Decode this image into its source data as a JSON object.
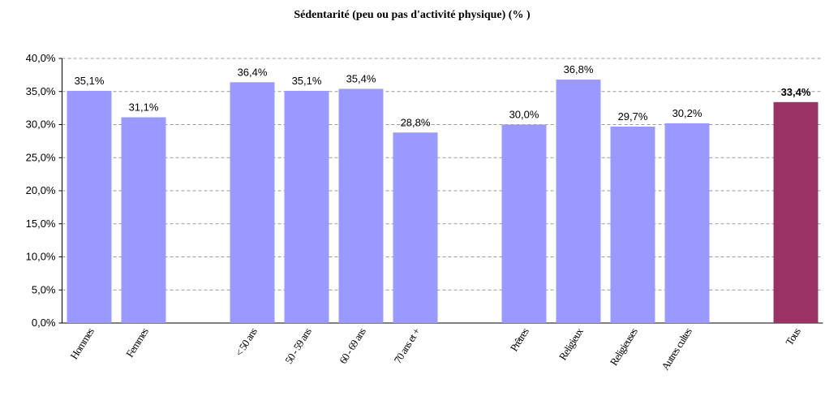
{
  "chart_data": {
    "type": "bar",
    "title": "Sédentarité (peu ou pas d'activité physique) (% )",
    "categories": [
      "Hommes",
      "Femmes",
      null,
      "< 50 ans",
      "50 - 59 ans",
      "60 - 69 ans",
      "70 ans et +",
      null,
      "Prêtres",
      "Religieux",
      "Religieuses",
      "Autres cultes",
      null,
      "Tous"
    ],
    "values": [
      35.1,
      31.1,
      null,
      36.4,
      35.1,
      35.4,
      28.8,
      null,
      30.0,
      36.8,
      29.7,
      30.2,
      null,
      33.4
    ],
    "value_labels": [
      "35,1%",
      "31,1%",
      null,
      "36,4%",
      "35,1%",
      "35,4%",
      "28,8%",
      null,
      "30,0%",
      "36,8%",
      "29,7%",
      "30,2%",
      null,
      "33,4%"
    ],
    "colors": [
      "#9999ff",
      "#9999ff",
      null,
      "#9999ff",
      "#9999ff",
      "#9999ff",
      "#9999ff",
      null,
      "#9999ff",
      "#9999ff",
      "#9999ff",
      "#9999ff",
      null,
      "#993366"
    ],
    "value_label_weights": [
      "normal",
      "normal",
      null,
      "normal",
      "normal",
      "normal",
      "normal",
      null,
      "normal",
      "normal",
      "normal",
      "normal",
      null,
      "bold"
    ],
    "ylim": [
      0,
      40
    ],
    "yticks": [
      {
        "value": 0,
        "label": "0,0%"
      },
      {
        "value": 5,
        "label": "5,0%"
      },
      {
        "value": 10,
        "label": "10,0%"
      },
      {
        "value": 15,
        "label": "15,0%"
      },
      {
        "value": 20,
        "label": "20,0%"
      },
      {
        "value": 25,
        "label": "25,0%"
      },
      {
        "value": 30,
        "label": "30,0%"
      },
      {
        "value": 35,
        "label": "35,0%"
      },
      {
        "value": 40,
        "label": "40,0%"
      }
    ],
    "grid": true
  }
}
